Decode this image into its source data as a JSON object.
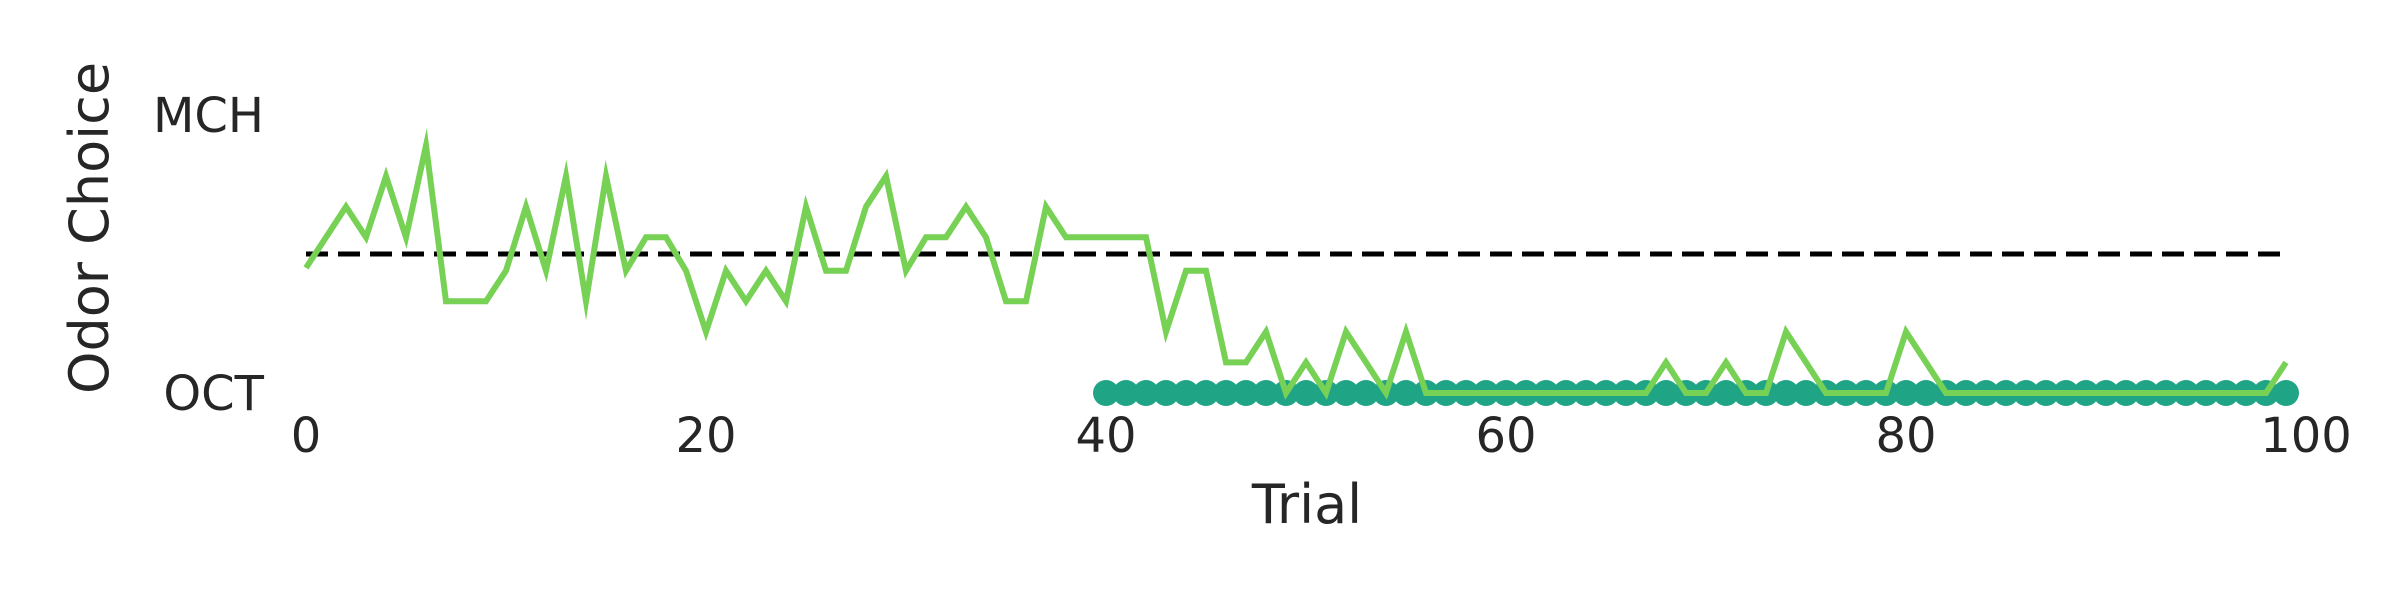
{
  "chart_data": {
    "type": "line",
    "xlabel": "Trial",
    "ylabel": "Odor Choice",
    "xlim": [
      0,
      100
    ],
    "ylim": [
      -0.1,
      1.1
    ],
    "x_ticks": [
      0,
      20,
      40,
      60,
      80,
      100
    ],
    "y_ticks": [
      {
        "value": 0,
        "label": "OCT"
      },
      {
        "value": 1,
        "label": "MCH"
      }
    ],
    "grid": false,
    "reference_line": {
      "y": 0.5,
      "style": "dashed",
      "color": "#000000",
      "x_range": [
        0,
        99
      ]
    },
    "colors": {
      "line": "#77d155",
      "points": "#20a486",
      "ref": "#000000"
    },
    "series": [
      {
        "kind": "line",
        "x_start": 0,
        "values": [
          0.45,
          0.56,
          0.67,
          0.56,
          0.78,
          0.56,
          0.89,
          0.33,
          0.33,
          0.33,
          0.44,
          0.67,
          0.44,
          0.78,
          0.33,
          0.78,
          0.44,
          0.56,
          0.56,
          0.44,
          0.22,
          0.44,
          0.33,
          0.44,
          0.33,
          0.67,
          0.44,
          0.44,
          0.67,
          0.78,
          0.44,
          0.56,
          0.56,
          0.67,
          0.56,
          0.33,
          0.33,
          0.67,
          0.56,
          0.56,
          0.56,
          0.56,
          0.56,
          0.22,
          0.44,
          0.44,
          0.11,
          0.11,
          0.22,
          0.0,
          0.11,
          0.0,
          0.22,
          0.11,
          0.0,
          0.22,
          0.0,
          0.0,
          0.0,
          0.0,
          0.0,
          0.0,
          0.0,
          0.0,
          0.0,
          0.0,
          0.0,
          0.0,
          0.11,
          0.0,
          0.0,
          0.11,
          0.0,
          0.0,
          0.22,
          0.11,
          0.0,
          0.0,
          0.0,
          0.0,
          0.22,
          0.11,
          0.0,
          0.0,
          0.0,
          0.0,
          0.0,
          0.0,
          0.0,
          0.0,
          0.0,
          0.0,
          0.0,
          0.0,
          0.0,
          0.0,
          0.0,
          0.0,
          0.0,
          0.11
        ]
      },
      {
        "kind": "scatter",
        "x_start": 40,
        "x_end": 99,
        "y": 0
      }
    ]
  }
}
